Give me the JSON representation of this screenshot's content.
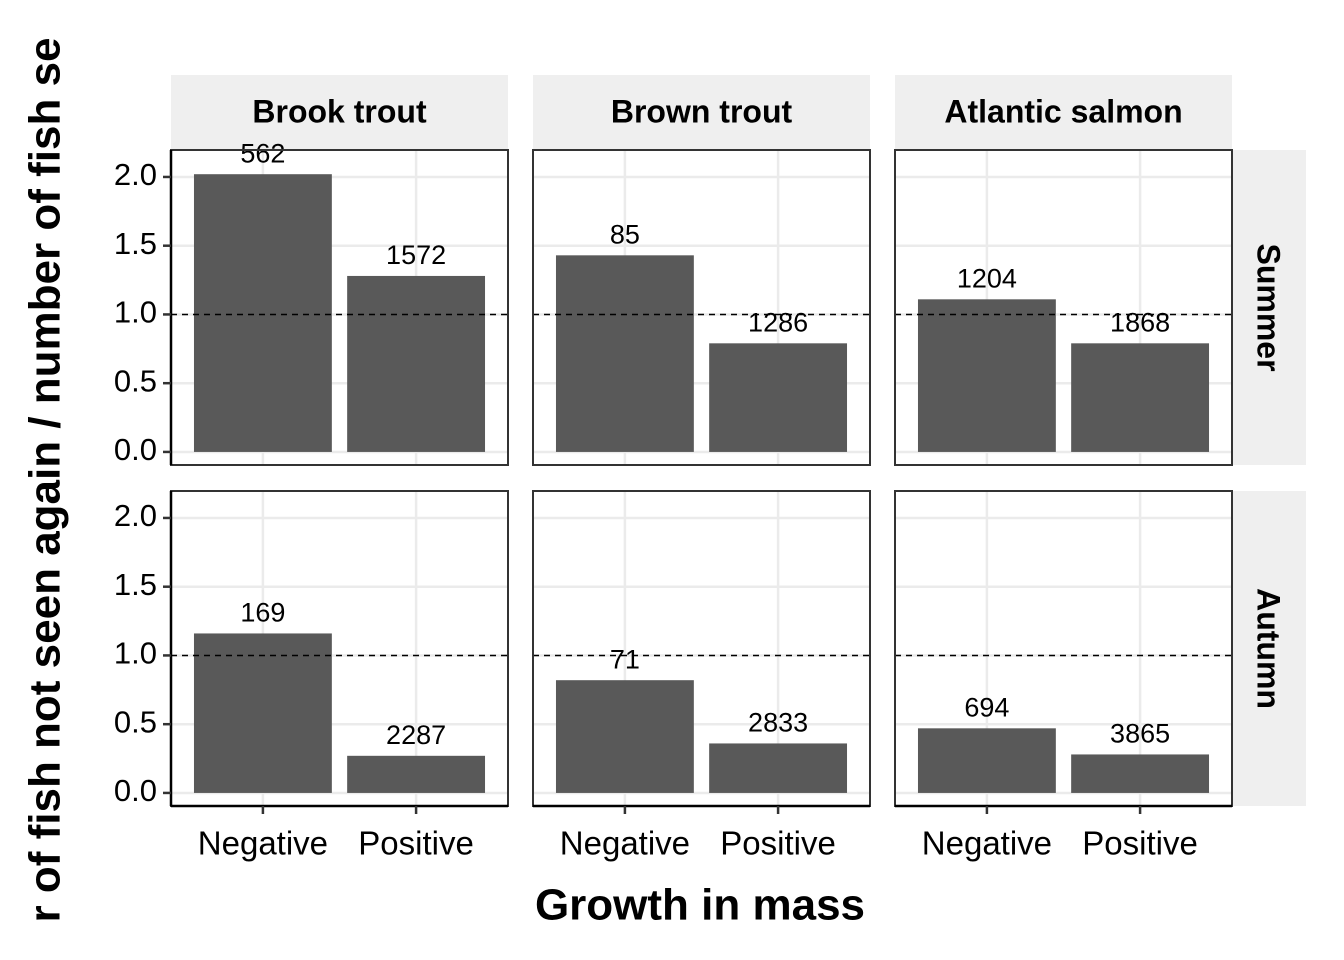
{
  "chart_data": {
    "type": "bar",
    "x_label": "Growth in mass",
    "y_label": "r of fish not seen again / number of fish se",
    "facet_columns": [
      "Brook trout",
      "Brown trout",
      "Atlantic salmon"
    ],
    "facet_rows": [
      "Summer",
      "Autumn"
    ],
    "categories": [
      "Negative",
      "Positive"
    ],
    "values": [
      [
        [
          2.02,
          1.28
        ],
        [
          1.43,
          0.79
        ],
        [
          1.11,
          0.79
        ]
      ],
      [
        [
          1.16,
          0.27
        ],
        [
          0.82,
          0.36
        ],
        [
          0.47,
          0.28
        ]
      ]
    ],
    "counts": [
      [
        [
          562,
          1572
        ],
        [
          85,
          1286
        ],
        [
          1204,
          1868
        ]
      ],
      [
        [
          169,
          2287
        ],
        [
          71,
          2833
        ],
        [
          694,
          3865
        ]
      ]
    ],
    "ylim": [
      -0.095,
      2.196
    ],
    "yticks": [
      {
        "value": 0,
        "label": "0.0"
      },
      {
        "value": 0.5,
        "label": "0.5"
      },
      {
        "value": 1,
        "label": "1.0"
      },
      {
        "value": 1.5,
        "label": "1.5"
      },
      {
        "value": 2,
        "label": "2.0"
      }
    ],
    "reference_line": 1,
    "color": "#595959",
    "grid": true
  }
}
